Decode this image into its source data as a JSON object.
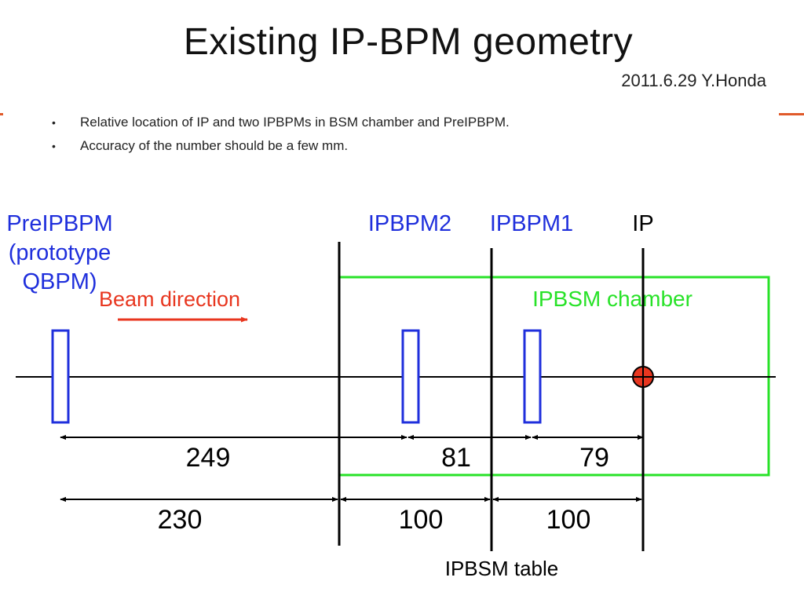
{
  "title": "Existing IP-BPM geometry",
  "subtitle": "2011.6.29 Y.Honda",
  "bullets": [
    "Relative location of IP and two IPBPMs in BSM chamber and PreIPBPM.",
    "Accuracy of the number should be a few mm."
  ],
  "colors": {
    "blue": "#1f2fdc",
    "red": "#e8361f",
    "green": "#28e228",
    "black": "#000000",
    "accent": "#e05a2a"
  },
  "labels": {
    "preipbpm_lines": [
      "PreIPBPM",
      "(prototype",
      "QBPM)"
    ],
    "ipbpm2": "IPBPM2",
    "ipbpm1": "IPBPM1",
    "ip": "IP",
    "beam_direction": "Beam direction",
    "chamber": "IPBSM chamber",
    "table": "IPBSM table"
  },
  "dimensions": {
    "upper": [
      "249",
      "81",
      "79"
    ],
    "lower": [
      "230",
      "100",
      "100"
    ]
  }
}
